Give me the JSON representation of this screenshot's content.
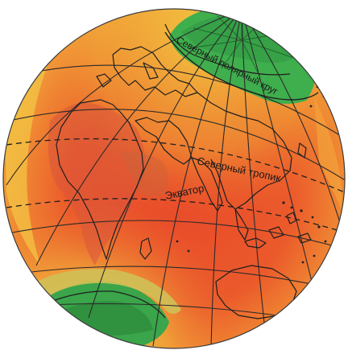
{
  "labels": {
    "arctic_circle": "Северный полярный круг",
    "tropic": "Северный тропик",
    "equator": "Экватор"
  },
  "colors": {
    "ocean_hot": "#e8502c",
    "ocean_warm": "#ef7a2c",
    "ocean_mild": "#f2a33a",
    "yellow": "#f4d24a",
    "land_cool": "#c8c25a",
    "polar_green": "#3aa54a",
    "polar_green_dark": "#2e8c3c",
    "grid_line": "#2a2a2a",
    "coast_line": "#1f1f1f",
    "background": "#ffffff"
  }
}
